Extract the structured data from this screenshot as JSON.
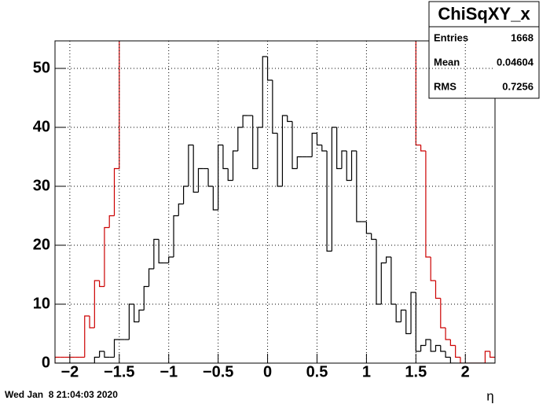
{
  "chart_data": {
    "type": "histogram",
    "title": "ChiSqXY_x",
    "stats": {
      "labels": [
        "Entries",
        "Mean",
        "RMS"
      ],
      "values": [
        1668,
        0.04604,
        0.7256
      ]
    },
    "timestamp": "Wed Jan  8 21:04:03 2020",
    "x_label": "η",
    "bins": [
      -2.15,
      -2.1,
      -2.05,
      -2,
      -1.95,
      -1.9,
      -1.85,
      -1.8,
      -1.75,
      -1.7,
      -1.65,
      -1.6,
      -1.55,
      -1.5,
      -1.45,
      -1.4,
      -1.35,
      -1.3,
      -1.25,
      -1.2,
      -1.15,
      -1.1,
      -1.05,
      -1,
      -0.95,
      -0.9,
      -0.85,
      -0.8,
      -0.75,
      -0.7,
      -0.65,
      -0.6,
      -0.55,
      -0.5,
      -0.45,
      -0.4,
      -0.35,
      -0.3,
      -0.25,
      -0.2,
      -0.15,
      -0.1,
      -0.05,
      0,
      0.05,
      0.1,
      0.15,
      0.2,
      0.25,
      0.3,
      0.35,
      0.4,
      0.45,
      0.5,
      0.55,
      0.6,
      0.65,
      0.7,
      0.75,
      0.8,
      0.85,
      0.9,
      0.95,
      1,
      1.05,
      1.1,
      1.15,
      1.2,
      1.25,
      1.3,
      1.35,
      1.4,
      1.45,
      1.5,
      1.55,
      1.6,
      1.65,
      1.7,
      1.75,
      1.8,
      1.85,
      1.9,
      1.95,
      2,
      2.05,
      2.1,
      2.15,
      2.2,
      2.25,
      2.3
    ],
    "series": [
      {
        "color": "#cc0000",
        "values": [
          1,
          1,
          1,
          1,
          1,
          1,
          8,
          6,
          14,
          13,
          23,
          25,
          33,
          null,
          null,
          null,
          null,
          null,
          null,
          null,
          null,
          null,
          null,
          null,
          null,
          null,
          null,
          null,
          null,
          null,
          null,
          null,
          null,
          null,
          null,
          null,
          null,
          null,
          null,
          null,
          null,
          null,
          null,
          null,
          null,
          null,
          null,
          null,
          null,
          null,
          null,
          null,
          null,
          null,
          null,
          null,
          null,
          null,
          null,
          null,
          null,
          null,
          null,
          null,
          null,
          null,
          null,
          null,
          null,
          null,
          null,
          null,
          null,
          37,
          36,
          18,
          14,
          11,
          6,
          4,
          3,
          1,
          0,
          0,
          0,
          0,
          0,
          2,
          1
        ]
      },
      {
        "color": "#000000",
        "values": [
          0,
          0,
          0,
          0,
          0,
          0,
          0,
          0,
          1,
          2,
          1,
          1,
          4,
          4,
          4,
          10,
          7,
          9,
          13,
          16,
          21,
          17,
          17,
          18,
          25,
          27,
          30,
          37,
          29,
          33,
          33,
          30,
          26,
          37,
          33,
          31,
          36,
          40,
          42,
          42,
          33,
          40,
          52,
          48,
          39,
          30,
          42,
          41,
          33,
          35,
          35,
          35,
          39,
          37,
          36,
          19,
          40,
          33,
          36,
          31,
          36,
          24,
          24,
          22,
          21,
          10,
          17,
          18,
          10,
          7,
          9,
          5,
          12,
          2,
          3,
          4,
          2,
          3,
          2,
          1,
          0,
          0,
          0,
          0,
          0,
          0,
          0,
          0,
          0
        ]
      }
    ],
    "xlim": [
      -2.15,
      2.3
    ],
    "ylim": [
      0,
      54.67
    ],
    "xticks": [
      {
        "value": -2,
        "label": "−2"
      },
      {
        "value": -1.5,
        "label": "−1.5"
      },
      {
        "value": -1,
        "label": "−1"
      },
      {
        "value": -0.5,
        "label": "−0.5"
      },
      0,
      0.5,
      1,
      1.5,
      2
    ],
    "yticks": [
      0,
      10,
      20,
      30,
      40,
      50
    ],
    "grid": true
  }
}
